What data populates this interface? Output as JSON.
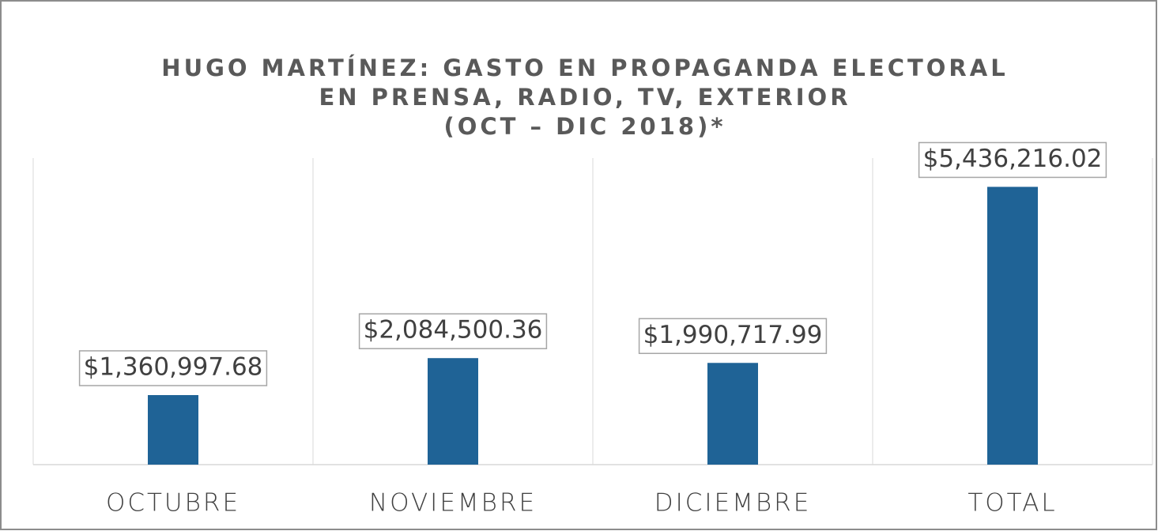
{
  "chart_data": {
    "type": "bar",
    "title": [
      "HUGO MARTÍNEZ: GASTO EN PROPAGANDA ELECTORAL",
      "EN PRENSA, RADIO, TV, EXTERIOR",
      "(OCT – DIC 2018)*"
    ],
    "categories": [
      "OCTUBRE",
      "NOVIEMBRE",
      "DICIEMBRE",
      "TOTAL"
    ],
    "values": [
      1360997.68,
      2084500.36,
      1990717.99,
      5436216.02
    ],
    "value_labels": [
      "$1,360,997.68",
      "$2,084,500.36",
      "$1,990,717.99",
      "$5,436,216.02"
    ],
    "color": "#1f6396",
    "ylim": [
      0,
      6000000
    ]
  }
}
